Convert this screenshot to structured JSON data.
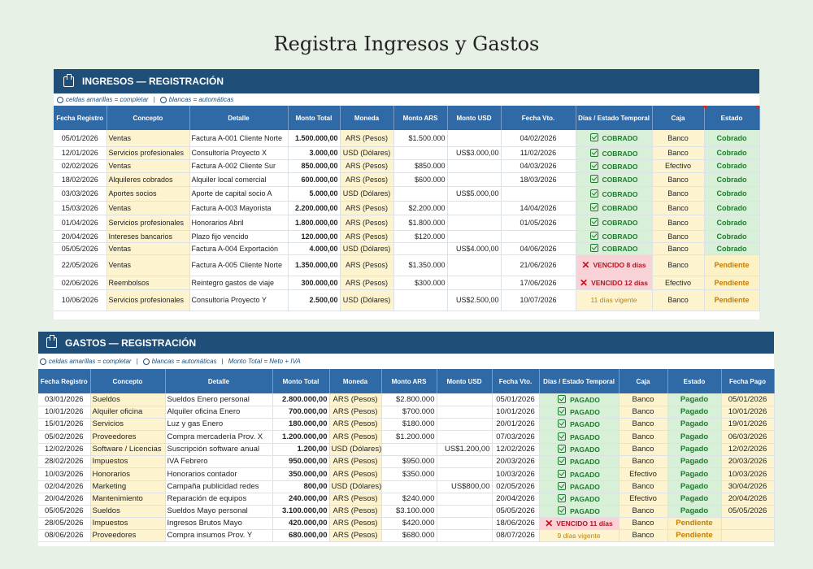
{
  "title": "Registra Ingresos y Gastos",
  "colors": {
    "header": "#1f4e79",
    "col_header": "#2f6aa6",
    "yellow": "#fdf4cf",
    "green": "#d8efd8",
    "red": "#f9d2d8"
  },
  "ingresos": {
    "heading": "INGRESOS — REGISTRACIÓN",
    "legend_yellow": "celdas amarillas = completar",
    "legend_sep": "|",
    "legend_white": "blancas = automáticas",
    "columns": [
      "Fecha Registro",
      "Concepto",
      "Detalle",
      "Monto Total",
      "Moneda",
      "Monto ARS",
      "Monto USD",
      "Fecha Vto.",
      "Días / Estado Temporal",
      "Caja",
      "Estado"
    ],
    "rows": [
      {
        "fecha": "05/01/2026",
        "concepto": "Ventas",
        "detalle": "Factura A-001 Cliente Norte",
        "monto": "1.500.000,00",
        "moneda": "ARS (Pesos)",
        "ars": "$1.500.000",
        "usd": "",
        "vto": "04/02/2026",
        "temp": "COBRADO",
        "temp_kind": "ok",
        "caja": "Banco",
        "estado": "Cobrado",
        "estado_kind": "ok"
      },
      {
        "fecha": "12/01/2026",
        "concepto": "Servicios profesionales",
        "detalle": "Consultoría Proyecto X",
        "monto": "3.000,00",
        "moneda": "USD (Dólares)",
        "ars": "",
        "usd": "US$3.000,00",
        "vto": "11/02/2026",
        "temp": "COBRADO",
        "temp_kind": "ok",
        "caja": "Banco",
        "estado": "Cobrado",
        "estado_kind": "ok"
      },
      {
        "fecha": "02/02/2026",
        "concepto": "Ventas",
        "detalle": "Factura A-002 Cliente Sur",
        "monto": "850.000,00",
        "moneda": "ARS (Pesos)",
        "ars": "$850.000",
        "usd": "",
        "vto": "04/03/2026",
        "temp": "COBRADO",
        "temp_kind": "ok",
        "caja": "Efectivo",
        "estado": "Cobrado",
        "estado_kind": "ok"
      },
      {
        "fecha": "18/02/2026",
        "concepto": "Alquileres cobrados",
        "detalle": "Alquiler local comercial",
        "monto": "600.000,00",
        "moneda": "ARS (Pesos)",
        "ars": "$600.000",
        "usd": "",
        "vto": "18/03/2026",
        "temp": "COBRADO",
        "temp_kind": "ok",
        "caja": "Banco",
        "estado": "Cobrado",
        "estado_kind": "ok"
      },
      {
        "fecha": "03/03/2026",
        "concepto": "Aportes socios",
        "detalle": "Aporte de capital socio A",
        "monto": "5.000,00",
        "moneda": "USD (Dólares)",
        "ars": "",
        "usd": "US$5.000,00",
        "vto": "",
        "temp": "COBRADO",
        "temp_kind": "ok",
        "caja": "Banco",
        "estado": "Cobrado",
        "estado_kind": "ok"
      },
      {
        "fecha": "15/03/2026",
        "concepto": "Ventas",
        "detalle": "Factura A-003 Mayorista",
        "monto": "2.200.000,00",
        "moneda": "ARS (Pesos)",
        "ars": "$2.200.000",
        "usd": "",
        "vto": "14/04/2026",
        "temp": "COBRADO",
        "temp_kind": "ok",
        "caja": "Banco",
        "estado": "Cobrado",
        "estado_kind": "ok"
      },
      {
        "fecha": "01/04/2026",
        "concepto": "Servicios profesionales",
        "detalle": "Honorarios Abril",
        "monto": "1.800.000,00",
        "moneda": "ARS (Pesos)",
        "ars": "$1.800.000",
        "usd": "",
        "vto": "01/05/2026",
        "temp": "COBRADO",
        "temp_kind": "ok",
        "caja": "Banco",
        "estado": "Cobrado",
        "estado_kind": "ok"
      },
      {
        "fecha": "20/04/2026",
        "concepto": "Intereses bancarios",
        "detalle": "Plazo fijo vencido",
        "monto": "120.000,00",
        "moneda": "ARS (Pesos)",
        "ars": "$120.000",
        "usd": "",
        "vto": "",
        "temp": "COBRADO",
        "temp_kind": "ok",
        "caja": "Banco",
        "estado": "Cobrado",
        "estado_kind": "ok"
      },
      {
        "fecha": "05/05/2026",
        "concepto": "Ventas",
        "detalle": "Factura A-004 Exportación",
        "monto": "4.000,00",
        "moneda": "USD (Dólares)",
        "ars": "",
        "usd": "US$4.000,00",
        "vto": "04/06/2026",
        "temp": "COBRADO",
        "temp_kind": "ok",
        "caja": "Banco",
        "estado": "Cobrado",
        "estado_kind": "ok"
      },
      {
        "fecha": "22/05/2026",
        "concepto": "Ventas",
        "detalle": "Factura A-005 Cliente Norte",
        "monto": "1.350.000,00",
        "moneda": "ARS (Pesos)",
        "ars": "$1.350.000",
        "usd": "",
        "vto": "21/06/2026",
        "temp": "VENCIDO 8 días",
        "temp_kind": "bad",
        "caja": "Banco",
        "estado": "Pendiente",
        "estado_kind": "pend"
      },
      {
        "fecha": "02/06/2026",
        "concepto": "Reembolsos",
        "detalle": "Reintegro gastos de viaje",
        "monto": "300.000,00",
        "moneda": "ARS (Pesos)",
        "ars": "$300.000",
        "usd": "",
        "vto": "17/06/2026",
        "temp": "VENCIDO 12 días",
        "temp_kind": "bad",
        "caja": "Efectivo",
        "estado": "Pendiente",
        "estado_kind": "pend"
      },
      {
        "fecha": "10/06/2026",
        "concepto": "Servicios profesionales",
        "detalle": "Consultoría Proyecto Y",
        "monto": "2.500,00",
        "moneda": "USD (Dólares)",
        "ars": "",
        "usd": "US$2.500,00",
        "vto": "10/07/2026",
        "temp": "11 días vigente",
        "temp_kind": "vig",
        "caja": "Banco",
        "estado": "Pendiente",
        "estado_kind": "pend"
      }
    ]
  },
  "gastos": {
    "heading": "GASTOS — REGISTRACIÓN",
    "legend_yellow": "celdas amarillas = completar",
    "legend_sep": "|",
    "legend_white": "blancas = automáticas",
    "legend_note": "Monto Total = Neto + IVA",
    "columns": [
      "Fecha Registro",
      "Concepto",
      "Detalle",
      "Monto Total",
      "Moneda",
      "Monto ARS",
      "Monto USD",
      "Fecha Vto.",
      "Días / Estado Temporal",
      "Caja",
      "Estado",
      "Fecha Pago"
    ],
    "rows": [
      {
        "fecha": "03/01/2026",
        "concepto": "Sueldos",
        "detalle": "Sueldos Enero personal",
        "monto": "2.800.000,00",
        "moneda": "ARS (Pesos)",
        "ars": "$2.800.000",
        "usd": "",
        "vto": "05/01/2026",
        "temp": "PAGADO",
        "temp_kind": "ok",
        "caja": "Banco",
        "estado": "Pagado",
        "estado_kind": "ok",
        "pago": "05/01/2026"
      },
      {
        "fecha": "10/01/2026",
        "concepto": "Alquiler oficina",
        "detalle": "Alquiler oficina Enero",
        "monto": "700.000,00",
        "moneda": "ARS (Pesos)",
        "ars": "$700.000",
        "usd": "",
        "vto": "10/01/2026",
        "temp": "PAGADO",
        "temp_kind": "ok",
        "caja": "Banco",
        "estado": "Pagado",
        "estado_kind": "ok",
        "pago": "10/01/2026"
      },
      {
        "fecha": "15/01/2026",
        "concepto": "Servicios",
        "detalle": "Luz y gas Enero",
        "monto": "180.000,00",
        "moneda": "ARS (Pesos)",
        "ars": "$180.000",
        "usd": "",
        "vto": "20/01/2026",
        "temp": "PAGADO",
        "temp_kind": "ok",
        "caja": "Banco",
        "estado": "Pagado",
        "estado_kind": "ok",
        "pago": "19/01/2026"
      },
      {
        "fecha": "05/02/2026",
        "concepto": "Proveedores",
        "detalle": "Compra mercadería Prov. X",
        "monto": "1.200.000,00",
        "moneda": "ARS (Pesos)",
        "ars": "$1.200.000",
        "usd": "",
        "vto": "07/03/2026",
        "temp": "PAGADO",
        "temp_kind": "ok",
        "caja": "Banco",
        "estado": "Pagado",
        "estado_kind": "ok",
        "pago": "06/03/2026"
      },
      {
        "fecha": "12/02/2026",
        "concepto": "Software / Licencias",
        "detalle": "Suscripción software anual",
        "monto": "1.200,00",
        "moneda": "USD (Dólares)",
        "ars": "",
        "usd": "US$1.200,00",
        "vto": "12/02/2026",
        "temp": "PAGADO",
        "temp_kind": "ok",
        "caja": "Banco",
        "estado": "Pagado",
        "estado_kind": "ok",
        "pago": "12/02/2026"
      },
      {
        "fecha": "28/02/2026",
        "concepto": "Impuestos",
        "detalle": "IVA Febrero",
        "monto": "950.000,00",
        "moneda": "ARS (Pesos)",
        "ars": "$950.000",
        "usd": "",
        "vto": "20/03/2026",
        "temp": "PAGADO",
        "temp_kind": "ok",
        "caja": "Banco",
        "estado": "Pagado",
        "estado_kind": "ok",
        "pago": "20/03/2026"
      },
      {
        "fecha": "10/03/2026",
        "concepto": "Honorarios",
        "detalle": "Honorarios contador",
        "monto": "350.000,00",
        "moneda": "ARS (Pesos)",
        "ars": "$350.000",
        "usd": "",
        "vto": "10/03/2026",
        "temp": "PAGADO",
        "temp_kind": "ok",
        "caja": "Efectivo",
        "estado": "Pagado",
        "estado_kind": "ok",
        "pago": "10/03/2026"
      },
      {
        "fecha": "02/04/2026",
        "concepto": "Marketing",
        "detalle": "Campaña publicidad redes",
        "monto": "800,00",
        "moneda": "USD (Dólares)",
        "ars": "",
        "usd": "US$800,00",
        "vto": "02/05/2026",
        "temp": "PAGADO",
        "temp_kind": "ok",
        "caja": "Banco",
        "estado": "Pagado",
        "estado_kind": "ok",
        "pago": "30/04/2026"
      },
      {
        "fecha": "20/04/2026",
        "concepto": "Mantenimiento",
        "detalle": "Reparación de equipos",
        "monto": "240.000,00",
        "moneda": "ARS (Pesos)",
        "ars": "$240.000",
        "usd": "",
        "vto": "20/04/2026",
        "temp": "PAGADO",
        "temp_kind": "ok",
        "caja": "Efectivo",
        "estado": "Pagado",
        "estado_kind": "ok",
        "pago": "20/04/2026"
      },
      {
        "fecha": "05/05/2026",
        "concepto": "Sueldos",
        "detalle": "Sueldos Mayo personal",
        "monto": "3.100.000,00",
        "moneda": "ARS (Pesos)",
        "ars": "$3.100.000",
        "usd": "",
        "vto": "05/05/2026",
        "temp": "PAGADO",
        "temp_kind": "ok",
        "caja": "Banco",
        "estado": "Pagado",
        "estado_kind": "ok",
        "pago": "05/05/2026"
      },
      {
        "fecha": "28/05/2026",
        "concepto": "Impuestos",
        "detalle": "Ingresos Brutos Mayo",
        "monto": "420.000,00",
        "moneda": "ARS (Pesos)",
        "ars": "$420.000",
        "usd": "",
        "vto": "18/06/2026",
        "temp": "VENCIDO 11 días",
        "temp_kind": "bad",
        "caja": "Banco",
        "estado": "Pendiente",
        "estado_kind": "pend",
        "pago": ""
      },
      {
        "fecha": "08/06/2026",
        "concepto": "Proveedores",
        "detalle": "Compra insumos Prov. Y",
        "monto": "680.000,00",
        "moneda": "ARS (Pesos)",
        "ars": "$680.000",
        "usd": "",
        "vto": "08/07/2026",
        "temp": "9 días vigente",
        "temp_kind": "vig",
        "caja": "Banco",
        "estado": "Pendiente",
        "estado_kind": "pend",
        "pago": ""
      }
    ]
  }
}
